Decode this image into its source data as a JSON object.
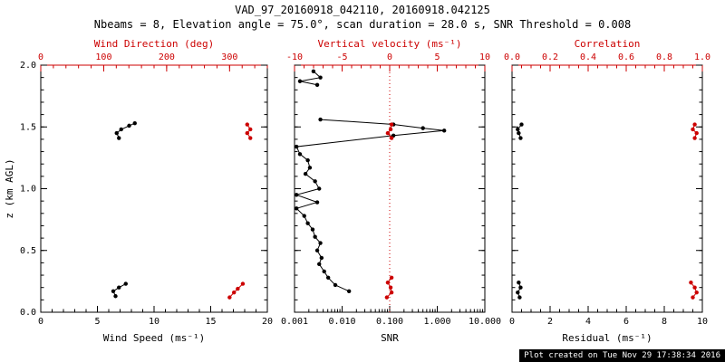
{
  "title": "VAD_97_20160918_042110, 20160918.042125",
  "subtitle": "Nbeams = 8, Elevation angle = 75.0°, scan duration = 28.0 s, SNR Threshold = 0.008",
  "footer": "Plot created on Tue Nov 29 17:38:34 2016",
  "colors": {
    "black": "#000000",
    "red": "#cc0000",
    "background": "#ffffff",
    "footer_bg": "#000000",
    "footer_fg": "#ffffff"
  },
  "chart_data": [
    {
      "type": "scatter",
      "name": "wind-speed-direction",
      "xlabel_bottom": "Wind Speed (ms⁻¹)",
      "xlabel_top": "Wind Direction (deg)",
      "ylabel": "z (km AGL)",
      "x_bottom": {
        "min": 0,
        "max": 20,
        "ticks": [
          0,
          5,
          10,
          15,
          20
        ],
        "tick_labels": [
          "0",
          "5",
          "10",
          "15",
          "20"
        ],
        "minor_step": 1
      },
      "x_top": {
        "min": 0,
        "max": 360,
        "ticks": [
          0,
          100,
          200,
          300
        ],
        "tick_labels": [
          "0",
          "100",
          "200",
          "300"
        ],
        "minor_step": 20
      },
      "y": {
        "min": 0,
        "max": 2,
        "ticks": [
          0,
          0.5,
          1,
          1.5,
          2
        ],
        "tick_labels": [
          "0.0",
          "0.5",
          "1.0",
          "1.5",
          "2.0"
        ],
        "minor_step": 0.1
      },
      "series": [
        {
          "name": "wind_speed",
          "color": "black",
          "axis": "bottom",
          "segments": [
            [
              [
                6.6,
                0.13
              ],
              [
                6.4,
                0.17
              ],
              [
                6.9,
                0.2
              ],
              [
                7.5,
                0.23
              ]
            ],
            [
              [
                6.9,
                1.41
              ],
              [
                6.7,
                1.45
              ],
              [
                7.1,
                1.48
              ],
              [
                7.8,
                1.51
              ],
              [
                8.3,
                1.53
              ]
            ]
          ]
        },
        {
          "name": "wind_direction",
          "color": "red",
          "axis": "top",
          "segments": [
            [
              [
                300,
                0.12
              ],
              [
                307,
                0.16
              ],
              [
                313,
                0.19
              ],
              [
                321,
                0.23
              ]
            ],
            [
              [
                333,
                1.41
              ],
              [
                328,
                1.45
              ],
              [
                333,
                1.48
              ],
              [
                328,
                1.52
              ]
            ]
          ]
        }
      ]
    },
    {
      "type": "scatter",
      "name": "snr-vertical-velocity",
      "xlabel_bottom": "SNR",
      "xlabel_top": "Vertical velocity (ms⁻¹)",
      "ylabel": "",
      "x_bottom": {
        "min": 0.001,
        "max": 10,
        "scale": "log",
        "ticks": [
          0.001,
          0.01,
          0.1,
          1,
          10
        ],
        "tick_labels": [
          "0.001",
          "0.010",
          "0.100",
          "1.000",
          "10.000"
        ]
      },
      "x_top": {
        "min": -10,
        "max": 10,
        "ticks": [
          -10,
          -5,
          0,
          5,
          10
        ],
        "tick_labels": [
          "-10",
          "-5",
          "0",
          "5",
          "10"
        ],
        "minor_step": 1
      },
      "y": {
        "min": 0,
        "max": 2,
        "ticks": [
          0,
          0.5,
          1,
          1.5,
          2
        ],
        "tick_labels": [],
        "minor_step": 0.1
      },
      "refline_top": 0,
      "series": [
        {
          "name": "snr",
          "color": "black",
          "axis": "bottom",
          "segments": [
            [
              [
                0.014,
                0.17
              ],
              [
                0.0072,
                0.22
              ],
              [
                0.0051,
                0.28
              ],
              [
                0.0042,
                0.33
              ],
              [
                0.0033,
                0.39
              ],
              [
                0.0037,
                0.44
              ],
              [
                0.003,
                0.5
              ],
              [
                0.0035,
                0.56
              ],
              [
                0.0027,
                0.61
              ],
              [
                0.0024,
                0.67
              ],
              [
                0.0019,
                0.72
              ],
              [
                0.0016,
                0.78
              ],
              [
                0.0011,
                0.84
              ],
              [
                0.003,
                0.89
              ],
              [
                0.0011,
                0.95
              ],
              [
                0.0033,
                1.0
              ],
              [
                0.0027,
                1.06
              ],
              [
                0.0017,
                1.12
              ],
              [
                0.0021,
                1.17
              ],
              [
                0.0019,
                1.23
              ],
              [
                0.0013,
                1.28
              ],
              [
                0.0011,
                1.34
              ],
              [
                0.12,
                1.43
              ],
              [
                1.4,
                1.47
              ],
              [
                0.5,
                1.49
              ],
              [
                0.12,
                1.52
              ],
              [
                0.0035,
                1.56
              ]
            ],
            [
              [
                0.003,
                1.84
              ],
              [
                0.0013,
                1.87
              ],
              [
                0.0035,
                1.9
              ],
              [
                0.0025,
                1.95
              ]
            ]
          ]
        },
        {
          "name": "vertical_velocity",
          "color": "red",
          "axis": "top",
          "segments": [
            [
              [
                -0.3,
                0.12
              ],
              [
                0.2,
                0.16
              ],
              [
                0.1,
                0.2
              ],
              [
                -0.2,
                0.24
              ],
              [
                0.2,
                0.28
              ]
            ],
            [
              [
                0.2,
                1.41
              ],
              [
                -0.2,
                1.45
              ],
              [
                0.1,
                1.48
              ],
              [
                0.2,
                1.52
              ]
            ]
          ]
        }
      ]
    },
    {
      "type": "scatter",
      "name": "residual-correlation",
      "xlabel_bottom": "Residual (ms⁻¹)",
      "xlabel_top": "Correlation",
      "ylabel": "",
      "x_bottom": {
        "min": 0,
        "max": 10,
        "ticks": [
          0,
          2,
          4,
          6,
          8,
          10
        ],
        "tick_labels": [
          "0",
          "2",
          "4",
          "6",
          "8",
          "10"
        ],
        "minor_step": 0.5
      },
      "x_top": {
        "min": 0,
        "max": 1,
        "ticks": [
          0,
          0.2,
          0.4,
          0.6,
          0.8,
          1
        ],
        "tick_labels": [
          "0.0",
          "0.2",
          "0.4",
          "0.6",
          "0.8",
          "1.0"
        ],
        "minor_step": 0.05
      },
      "y": {
        "min": 0,
        "max": 2,
        "ticks": [
          0,
          0.5,
          1,
          1.5,
          2
        ],
        "tick_labels": [],
        "minor_step": 0.1
      },
      "series": [
        {
          "name": "residual",
          "color": "black",
          "axis": "bottom",
          "segments": [
            [
              [
                0.4,
                0.12
              ],
              [
                0.3,
                0.16
              ],
              [
                0.45,
                0.2
              ],
              [
                0.35,
                0.24
              ]
            ],
            [
              [
                0.45,
                1.41
              ],
              [
                0.35,
                1.45
              ],
              [
                0.3,
                1.48
              ],
              [
                0.5,
                1.52
              ]
            ]
          ]
        },
        {
          "name": "correlation",
          "color": "red",
          "axis": "top",
          "segments": [
            [
              [
                0.95,
                0.12
              ],
              [
                0.97,
                0.16
              ],
              [
                0.96,
                0.2
              ],
              [
                0.94,
                0.24
              ]
            ],
            [
              [
                0.96,
                1.41
              ],
              [
                0.97,
                1.45
              ],
              [
                0.95,
                1.48
              ],
              [
                0.96,
                1.52
              ]
            ]
          ]
        }
      ]
    }
  ]
}
